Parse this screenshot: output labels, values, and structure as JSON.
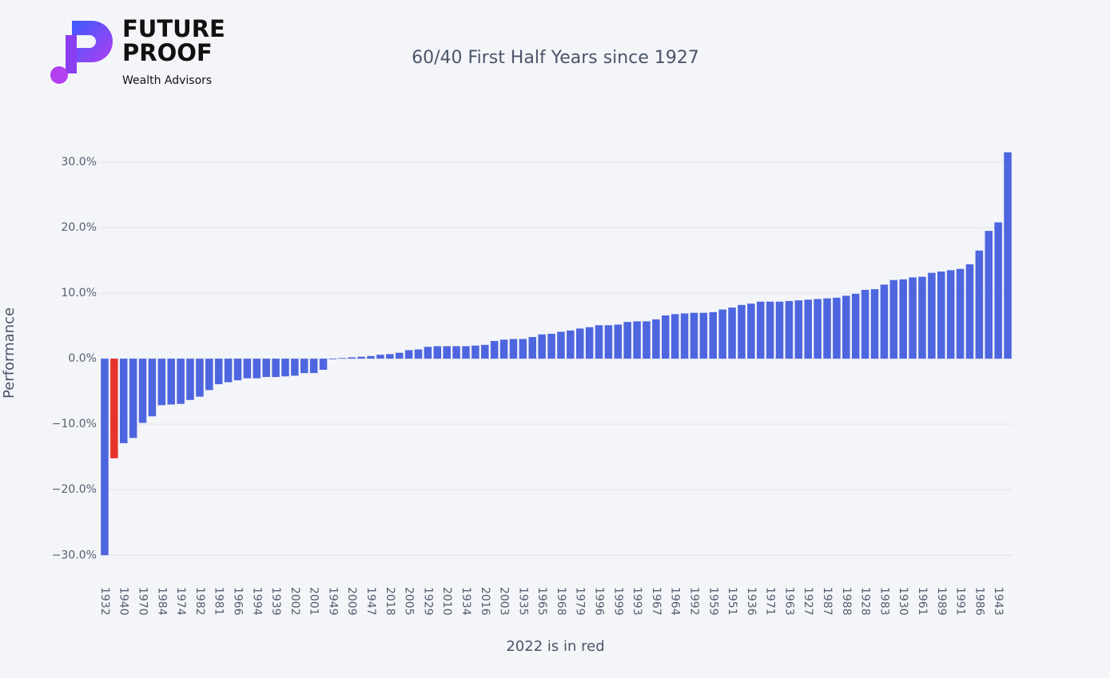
{
  "logo": {
    "line1": "FUTURE",
    "line2": "PROOF",
    "line3": "Wealth Advisors"
  },
  "chart_data": {
    "type": "bar",
    "title": "60/40 First Half Years since 1927",
    "x_label": "2022 is in red",
    "y_label": "Performance",
    "categories": [
      "1932",
      null,
      "1940",
      null,
      "1970",
      null,
      "1984",
      null,
      "1974",
      null,
      "1982",
      null,
      "1981",
      null,
      "1966",
      null,
      "1994",
      null,
      "1939",
      null,
      "2002",
      null,
      "2001",
      null,
      "1949",
      null,
      "2009",
      null,
      "1947",
      null,
      "2018",
      null,
      "2005",
      null,
      "1929",
      null,
      "2010",
      null,
      "1934",
      null,
      "2016",
      null,
      "2003",
      null,
      "1935",
      null,
      "1965",
      null,
      "1968",
      null,
      "1979",
      null,
      "1996",
      null,
      "1999",
      null,
      "1993",
      null,
      "1967",
      null,
      "1964",
      null,
      "1992",
      null,
      "1959",
      null,
      "1951",
      null,
      "1936",
      null,
      "1971",
      null,
      "1963",
      null,
      "1927",
      null,
      "1987",
      null,
      "1988",
      null,
      "1928",
      null,
      "1983",
      null,
      "1930",
      null,
      "1961",
      null,
      "1989",
      null,
      "1991",
      null,
      "1986",
      null,
      "1943",
      null
    ],
    "values": [
      -30,
      -15.2,
      -12.9,
      -12.1,
      -9.8,
      -8.8,
      -7.1,
      -7.0,
      -6.9,
      -6.3,
      -5.8,
      -4.8,
      -3.9,
      -3.6,
      -3.3,
      -3.0,
      -3.0,
      -2.8,
      -2.8,
      -2.7,
      -2.6,
      -2.2,
      -2.2,
      -1.7,
      -0.1,
      0.1,
      0.2,
      0.3,
      0.4,
      0.6,
      0.7,
      0.9,
      1.3,
      1.4,
      1.8,
      1.9,
      1.9,
      1.9,
      1.9,
      2.0,
      2.1,
      2.7,
      2.9,
      3.0,
      3.0,
      3.3,
      3.7,
      3.8,
      4.1,
      4.3,
      4.6,
      4.8,
      5.1,
      5.1,
      5.2,
      5.6,
      5.7,
      5.7,
      6.0,
      6.6,
      6.8,
      6.9,
      7.0,
      7.0,
      7.1,
      7.5,
      7.8,
      8.2,
      8.4,
      8.7,
      8.7,
      8.7,
      8.8,
      8.9,
      9.0,
      9.1,
      9.2,
      9.3,
      9.6,
      9.9,
      10.5,
      10.6,
      11.3,
      12.0,
      12.1,
      12.4,
      12.5,
      13.1,
      13.3,
      13.5,
      13.7,
      14.4,
      16.5,
      19.5,
      20.8,
      31.5
    ],
    "colors": [
      "#4d66df",
      "#e8332a",
      "#4d66df",
      "#4d66df",
      "#4d66df",
      "#4d66df",
      "#4d66df",
      "#4d66df",
      "#4d66df",
      "#4d66df",
      "#4d66df",
      "#4d66df",
      "#4d66df",
      "#4d66df",
      "#4d66df",
      "#4d66df",
      "#4d66df",
      "#4d66df",
      "#4d66df",
      "#4d66df",
      "#4d66df",
      "#4d66df",
      "#4d66df",
      "#4d66df",
      "#4d66df",
      "#4d66df",
      "#4d66df",
      "#4d66df",
      "#4d66df",
      "#4d66df",
      "#4d66df",
      "#4d66df",
      "#4d66df",
      "#4d66df",
      "#4d66df",
      "#4d66df",
      "#4d66df",
      "#4d66df",
      "#4d66df",
      "#4d66df",
      "#4d66df",
      "#4d66df",
      "#4d66df",
      "#4d66df",
      "#4d66df",
      "#4d66df",
      "#4d66df",
      "#4d66df",
      "#4d66df",
      "#4d66df",
      "#4d66df",
      "#4d66df",
      "#4d66df",
      "#4d66df",
      "#4d66df",
      "#4d66df",
      "#4d66df",
      "#4d66df",
      "#4d66df",
      "#4d66df",
      "#4d66df",
      "#4d66df",
      "#4d66df",
      "#4d66df",
      "#4d66df",
      "#4d66df",
      "#4d66df",
      "#4d66df",
      "#4d66df",
      "#4d66df",
      "#4d66df",
      "#4d66df",
      "#4d66df",
      "#4d66df",
      "#4d66df",
      "#4d66df",
      "#4d66df",
      "#4d66df",
      "#4d66df",
      "#4d66df",
      "#4d66df",
      "#4d66df",
      "#4d66df",
      "#4d66df",
      "#4d66df",
      "#4d66df",
      "#4d66df",
      "#4d66df",
      "#4d66df",
      "#4d66df",
      "#4d66df",
      "#4d66df",
      "#4d66df",
      "#4d66df",
      "#4d66df",
      "#4d66df"
    ],
    "ylim": [
      -30.7,
      32.8
    ],
    "yticks": [
      {
        "value": -30,
        "label": "−30.0%"
      },
      {
        "value": -20,
        "label": "−20.0%"
      },
      {
        "value": -10,
        "label": "−10.0%"
      },
      {
        "value": 0,
        "label": "0.0%"
      },
      {
        "value": 10,
        "label": "10.0%"
      },
      {
        "value": 20,
        "label": "20.0%"
      },
      {
        "value": 30,
        "label": "30.0%"
      }
    ],
    "grid": true
  }
}
